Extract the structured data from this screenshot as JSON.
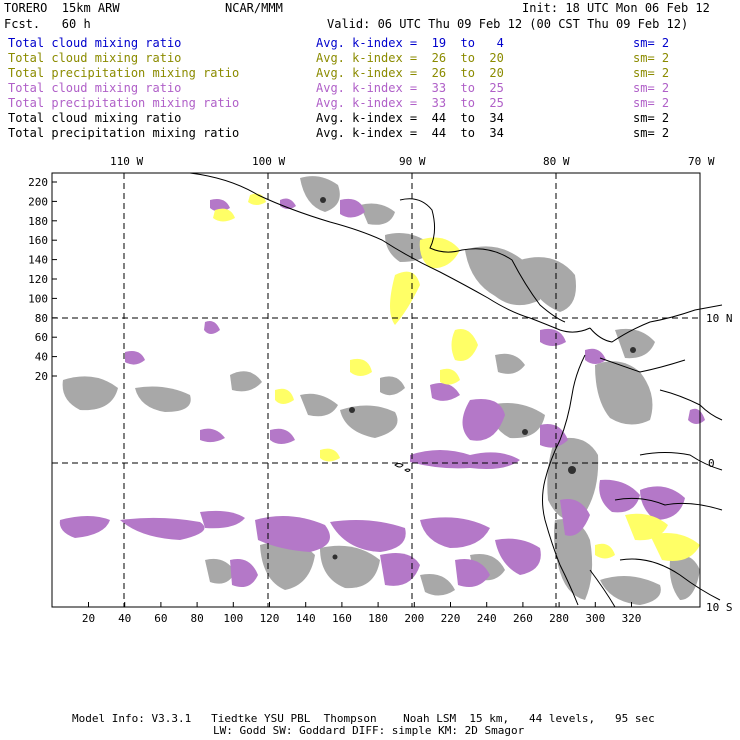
{
  "header": {
    "model": "TORERO  15km ARW",
    "org": "NCAR/MMM",
    "init": "Init: 18 UTC Mon 06 Feb 12",
    "fcst": "Fcst.   60 h",
    "valid": "Valid: 06 UTC Thu 09 Feb 12 (00 CST Thu 09 Feb 12)"
  },
  "colors": {
    "blue": "#0000cc",
    "olive": "#8b8b00",
    "purple": "#b060c8",
    "black": "#000000",
    "gray_field": "#a9a9a9",
    "yellow_field": "#ffff66",
    "purple_field": "#b478c8"
  },
  "legend": [
    {
      "field": "Total cloud mixing ratio",
      "stat": "Avg. k-index =  19  to   4",
      "sm": "sm= 2",
      "color": "blue"
    },
    {
      "field": "Total cloud mixing ratio",
      "stat": "Avg. k-index =  26  to  20",
      "sm": "sm= 2",
      "color": "olive"
    },
    {
      "field": "Total precipitation mixing ratio",
      "stat": "Avg. k-index =  26  to  20",
      "sm": "sm= 2",
      "color": "olive"
    },
    {
      "field": "Total cloud mixing ratio",
      "stat": "Avg. k-index =  33  to  25",
      "sm": "sm= 2",
      "color": "purple"
    },
    {
      "field": "Total precipitation mixing ratio",
      "stat": "Avg. k-index =  33  to  25",
      "sm": "sm= 2",
      "color": "purple"
    },
    {
      "field": "Total cloud mixing ratio",
      "stat": "Avg. k-index =  44  to  34",
      "sm": "sm= 2",
      "color": "black"
    },
    {
      "field": "Total precipitation mixing ratio",
      "stat": "Avg. k-index =  44  to  34",
      "sm": "sm= 2",
      "color": "black"
    }
  ],
  "axes": {
    "top_ticks": [
      "110 W",
      "100 W",
      "90 W",
      "80 W",
      "70 W"
    ],
    "right_ticks": [
      "10 N",
      "0",
      "10 S"
    ],
    "left_ticks": [
      "220",
      "200",
      "180",
      "160",
      "140",
      "120",
      "100",
      "80",
      "60",
      "40",
      "20"
    ],
    "bottom_ticks": [
      "20",
      "40",
      "60",
      "80",
      "100",
      "120",
      "140",
      "160",
      "180",
      "200",
      "220",
      "240",
      "260",
      "280",
      "300",
      "320"
    ]
  },
  "footer": {
    "line1": "Model Info: V3.3.1   Tiedtke YSU PBL  Thompson    Noah LSM  15 km,   44 levels,   95 sec",
    "line2": "LW: Godd SW: Goddard DIFF: simple KM: 2D Smagor"
  }
}
